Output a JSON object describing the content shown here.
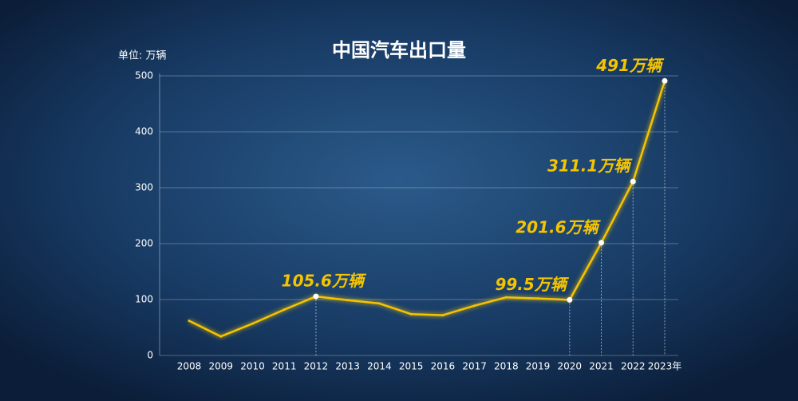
{
  "chart_data": {
    "type": "line",
    "title": "中国汽车出口量",
    "unit_label": "单位: 万辆",
    "categories": [
      "2008",
      "2009",
      "2010",
      "2011",
      "2012",
      "2013",
      "2014",
      "2015",
      "2016",
      "2017",
      "2018",
      "2019",
      "2020",
      "2021",
      "2022",
      "2023年"
    ],
    "values": [
      62,
      34,
      57,
      82,
      105.6,
      99,
      93,
      74,
      72,
      89,
      104,
      102,
      99.5,
      201.6,
      311.1,
      491
    ],
    "value_labels": [
      null,
      null,
      null,
      null,
      "105.6万辆",
      null,
      null,
      null,
      null,
      null,
      null,
      null,
      "99.5万辆",
      "201.6万辆",
      "311.1万辆",
      "491万辆"
    ],
    "color": "#f5c400",
    "ylim": [
      0,
      500
    ],
    "yticks": [
      0,
      100,
      200,
      300,
      400,
      500
    ],
    "grid": true
  }
}
